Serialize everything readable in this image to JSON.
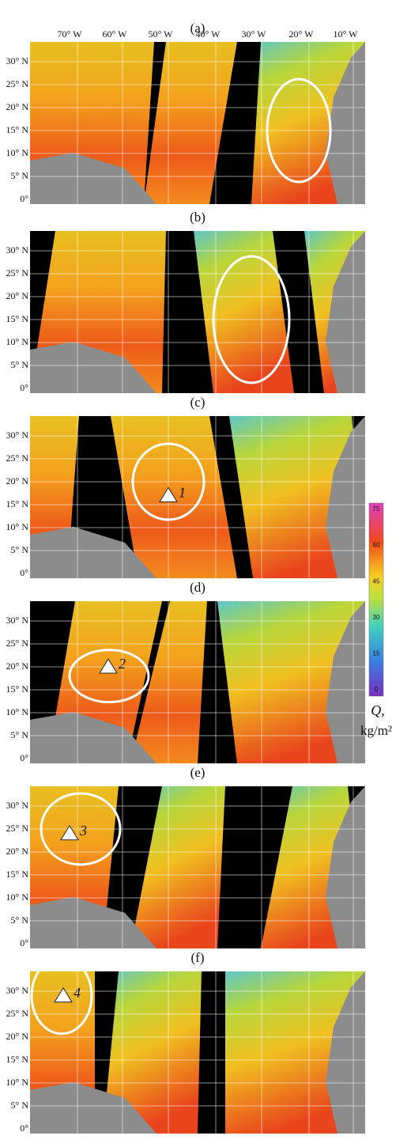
{
  "longitude_labels": [
    "70° W",
    "60° W",
    "50° W",
    "40° W",
    "30° W",
    "20° W",
    "10° W"
  ],
  "latitude_labels": [
    "30° N",
    "25° N",
    "20° N",
    "15° N",
    "10° N",
    "5° N",
    "0°"
  ],
  "panels": [
    {
      "label": "(a)"
    },
    {
      "label": "(b)"
    },
    {
      "label": "(c)",
      "marker": "1"
    },
    {
      "label": "(d)",
      "marker": "2"
    },
    {
      "label": "(e)",
      "marker": "3"
    },
    {
      "label": "(f)",
      "marker": "4"
    }
  ],
  "colorbar": {
    "ticks": [
      0,
      15,
      30,
      45,
      60,
      75
    ],
    "symbol": "Q,",
    "unit": "kg/m²"
  }
}
